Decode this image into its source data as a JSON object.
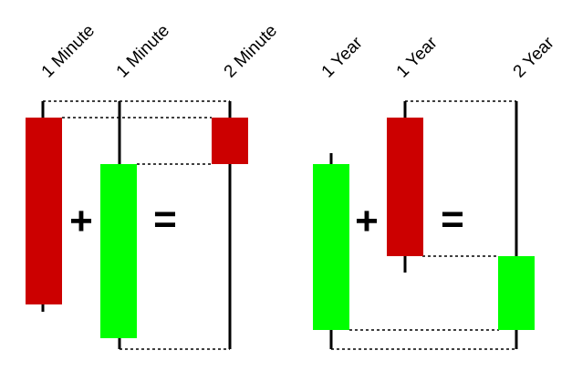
{
  "labels": {
    "left_candle_1": "1 Minute",
    "left_candle_2": "1 Minute",
    "left_result": "2 Minute",
    "right_candle_1": "1 Year",
    "right_candle_2": "1 Year",
    "right_result": "2 Year"
  },
  "operators": {
    "left_plus": "+",
    "left_equals": "=",
    "right_plus": "+",
    "right_equals": "="
  },
  "colors": {
    "bearish": "#cc0000",
    "bullish": "#00ff00",
    "wick": "#000000",
    "guide": "#000000"
  }
}
